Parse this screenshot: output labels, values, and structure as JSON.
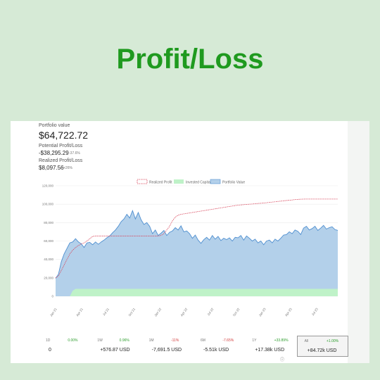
{
  "page_title": "Profit/Loss",
  "summary": {
    "portfolio_label": "Portfolio value",
    "portfolio_value": "$64,722.72",
    "potential_label": "Potential Profit/Loss",
    "potential_value": "-$38,295.29",
    "potential_pct": "-37.6%",
    "realized_label": "Realized Profit/Loss",
    "realized_value": "$8,097.56",
    "realized_pct": "+26%"
  },
  "stats": [
    {
      "period": "1D",
      "change": "0.00%",
      "change_color": "#2e9e2e",
      "value": "0"
    },
    {
      "period": "1W",
      "change": "0.96%",
      "change_color": "#2e9e2e",
      "value": "+576.87 USD"
    },
    {
      "period": "1M",
      "change": "-11%",
      "change_color": "#d23b3b",
      "value": "-7,691.5 USD"
    },
    {
      "period": "6M",
      "change": "-7.65%",
      "change_color": "#d23b3b",
      "value": "-5.51k USD"
    },
    {
      "period": "1Y",
      "change": "+33.89%",
      "change_color": "#2e9e2e",
      "value": "+17.38k USD"
    },
    {
      "period": "All",
      "change": "+1.00%",
      "change_color": "#2e9e2e",
      "value": "+84.72k USD",
      "selected": true
    }
  ],
  "colors": {
    "title": "#1f9a1f",
    "portfolio_fill": "#b3d0ea",
    "portfolio_line": "#4f8fd0",
    "invested_fill": "#bff2c8",
    "profit_line": "#d8445a"
  },
  "chart_data": {
    "type": "area",
    "ylim": [
      0,
      120000
    ],
    "y_ticks": [
      "0",
      "20,000",
      "40,000",
      "60,000",
      "80,000",
      "100,000",
      "120,000"
    ],
    "x_tick_labels": [
      "Jan 21",
      "Apr 21",
      "Jul 21",
      "Oct 21",
      "Jan 22",
      "Apr 22",
      "Jul 22",
      "Oct 22",
      "Jan 23",
      "Apr 23",
      "Jul 23"
    ],
    "legend": [
      "Realized Profit",
      "Invested Capital",
      "Portfolio Value"
    ],
    "legend_placement": "top-center",
    "series": [
      {
        "name": "Portfolio Value",
        "values": [
          19500,
          24000,
          37500,
          46000,
          52000,
          58000,
          59000,
          62500,
          59000,
          57000,
          53000,
          58000,
          58500,
          56000,
          59000,
          56500,
          59000,
          61000,
          63500,
          65500,
          69000,
          72000,
          76000,
          81000,
          84000,
          89000,
          85000,
          93000,
          84000,
          91000,
          83000,
          78000,
          80000,
          76000,
          68000,
          72000,
          66000,
          68500,
          71500,
          66000,
          69500,
          71000,
          74500,
          72000,
          76500,
          70000,
          71000,
          68000,
          63000,
          66500,
          61000,
          57500,
          61500,
          64000,
          61000,
          66000,
          62000,
          65000,
          60500,
          63000,
          61500,
          63500,
          60000,
          64000,
          63500,
          66000,
          61000,
          65500,
          63000,
          60000,
          62000,
          58000,
          60000,
          56000,
          60000,
          61000,
          58000,
          62000,
          60000,
          63000,
          66500,
          67000,
          70000,
          68000,
          72000,
          70500,
          67000,
          74000,
          76000,
          72000,
          73500,
          76000,
          71500,
          74000,
          77000,
          73000,
          74500,
          75500,
          72500,
          71500
        ]
      },
      {
        "name": "Invested Capital",
        "values": [
          0,
          0,
          0,
          0,
          0,
          0,
          6000,
          8000,
          8000,
          8000,
          8000,
          8000,
          8000,
          8000,
          8000,
          8000,
          8000,
          8000,
          8000,
          8000,
          8000,
          8000,
          8000,
          8000,
          8000,
          8000,
          8000,
          8000,
          8000,
          8000,
          8000,
          8000,
          8000,
          8000,
          8000,
          8000,
          8000,
          8000,
          8000,
          8000,
          8000,
          8000,
          8000,
          8000,
          8000,
          8000,
          8000,
          8000,
          8000,
          8000,
          8000,
          8000,
          8000,
          8000,
          8000,
          8000,
          8000,
          8000,
          8000,
          8000,
          8000,
          8000,
          8000,
          8000,
          8000,
          8000,
          8000,
          8000,
          8000,
          8000,
          8000,
          8000,
          8000,
          8000,
          8000,
          8000,
          8000,
          8000,
          8000,
          8000,
          8000,
          8000,
          8000,
          8000,
          8000,
          8000,
          8000,
          8000,
          8000,
          8000,
          8000,
          8000,
          8000,
          8000,
          8000,
          8000,
          8000,
          8000,
          8000,
          8000
        ]
      },
      {
        "name": "Realized Profit",
        "values": [
          20000,
          22000,
          28000,
          34000,
          40000,
          46000,
          50000,
          53000,
          55000,
          57000,
          58000,
          60000,
          62500,
          65000,
          65500,
          65500,
          65500,
          65500,
          65500,
          65500,
          65500,
          65500,
          65500,
          65500,
          65500,
          65500,
          65500,
          65500,
          65500,
          65500,
          65500,
          65500,
          65500,
          65500,
          65500,
          65500,
          65500,
          66000,
          68000,
          72000,
          76000,
          82000,
          86000,
          88000,
          89000,
          89500,
          90000,
          90500,
          91000,
          91500,
          92000,
          92500,
          93000,
          93500,
          94000,
          94500,
          95000,
          95500,
          96000,
          96500,
          97000,
          97500,
          98000,
          98500,
          99000,
          99200,
          99500,
          99800,
          100000,
          100200,
          100500,
          100800,
          101000,
          101300,
          101600,
          102000,
          102300,
          102600,
          103000,
          103300,
          103700,
          104000,
          104300,
          104600,
          105000,
          105200,
          105400,
          105500,
          105600,
          105600,
          105600,
          105600,
          105600,
          105600,
          105600,
          105600,
          105600,
          105600,
          105600,
          105600
        ]
      }
    ]
  }
}
